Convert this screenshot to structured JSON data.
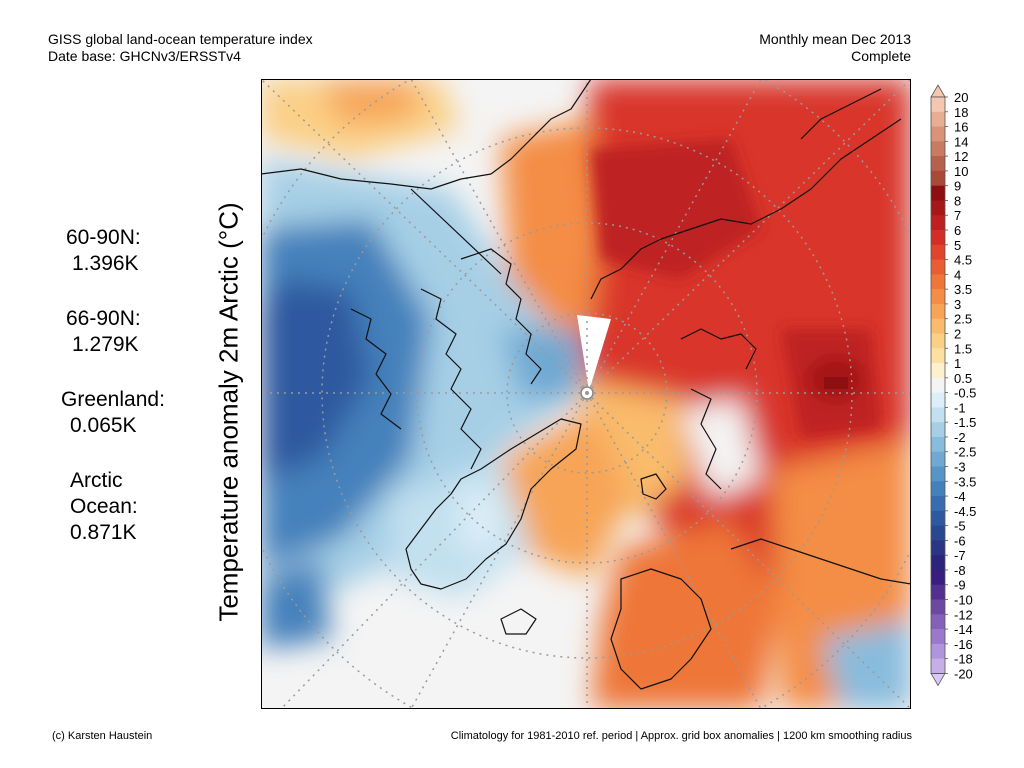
{
  "header": {
    "title_line1": "GISS global land-ocean temperature index",
    "title_line2": "Date base: GHCNv3/ERSSTv4",
    "period_line1": "Monthly mean Dec 2013",
    "period_line2": "Complete"
  },
  "y_label": "Temperature anomaly 2m Arctic (°C)",
  "stats": [
    {
      "region": "60-90N:",
      "value": "1.396K"
    },
    {
      "region": "66-90N:",
      "value": "1.279K"
    },
    {
      "region": "Greenland:",
      "value": "0.065K"
    },
    {
      "region_line1": "Arctic",
      "region_line2": "Ocean:",
      "value": "0.871K"
    }
  ],
  "footer": {
    "credit": "(c) Karsten Haustein",
    "note": "Climatology for 1981-2010 ref. period | Approx. grid box anomalies | 1200 km smoothing radius"
  },
  "colorbar": {
    "labels": [
      "20",
      "18",
      "16",
      "14",
      "12",
      "10",
      "9",
      "8",
      "7",
      "6",
      "5",
      "4.5",
      "4",
      "3.5",
      "3",
      "2.5",
      "2",
      "1.5",
      "1",
      "0.5",
      "-0.5",
      "-1",
      "-1.5",
      "-2",
      "-2.5",
      "-3",
      "-3.5",
      "-4",
      "-4.5",
      "-5",
      "-6",
      "-7",
      "-8",
      "-9",
      "-10",
      "-12",
      "-14",
      "-16",
      "-18",
      "-20"
    ],
    "colors": [
      "#f4c7b0",
      "#e8ae93",
      "#d99478",
      "#c97b62",
      "#b5614c",
      "#a84a37",
      "#8e0f12",
      "#a61818",
      "#be2020",
      "#d32d26",
      "#e0442c",
      "#e85d32",
      "#ee7638",
      "#f48d45",
      "#f7a457",
      "#f9bb6c",
      "#fbcf85",
      "#fce0a2",
      "#fdf0cd",
      "#f4f4f4",
      "#dceef7",
      "#c2e0ef",
      "#a6cfe6",
      "#88bcdd",
      "#6fa9d2",
      "#5795c7",
      "#4481bc",
      "#376dae",
      "#2e599f",
      "#284890",
      "#2a3583",
      "#2c247a",
      "#3a1e7f",
      "#53308f",
      "#6c48a3",
      "#8460b8",
      "#9a79cc",
      "#b094dc",
      "#c6afe8"
    ],
    "top_arrow_color": "#f4c7b0",
    "bottom_arrow_color": "#d9c9f3"
  }
}
